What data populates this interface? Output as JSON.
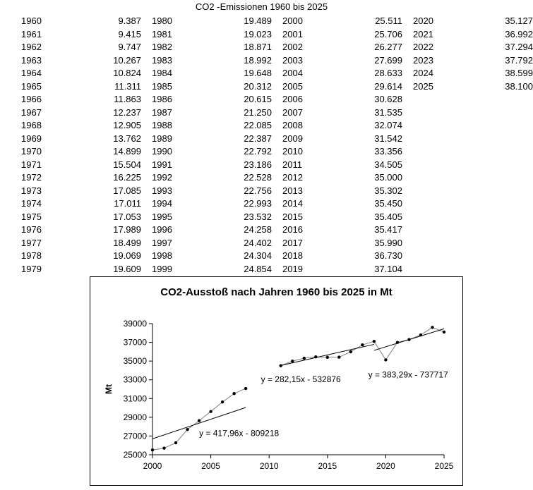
{
  "table": {
    "title": "CO2 -Emissionen 1960 bis 2025",
    "columns": [
      [
        [
          "1960",
          "9.387"
        ],
        [
          "1961",
          "9.415"
        ],
        [
          "1962",
          "9.747"
        ],
        [
          "1963",
          "10.267"
        ],
        [
          "1964",
          "10.824"
        ],
        [
          "1965",
          "11.311"
        ],
        [
          "1966",
          "11.863"
        ],
        [
          "1967",
          "12.237"
        ],
        [
          "1968",
          "12.905"
        ],
        [
          "1969",
          "13.762"
        ],
        [
          "1970",
          "14.899"
        ],
        [
          "1971",
          "15.504"
        ],
        [
          "1972",
          "16.225"
        ],
        [
          "1973",
          "17.085"
        ],
        [
          "1974",
          "17.011"
        ],
        [
          "1975",
          "17.053"
        ],
        [
          "1976",
          "17.989"
        ],
        [
          "1977",
          "18.499"
        ],
        [
          "1978",
          "19.069"
        ],
        [
          "1979",
          "19.609"
        ]
      ],
      [
        [
          "1980",
          "19.489"
        ],
        [
          "1981",
          "19.023"
        ],
        [
          "1982",
          "18.871"
        ],
        [
          "1983",
          "18.992"
        ],
        [
          "1984",
          "19.648"
        ],
        [
          "1985",
          "20.312"
        ],
        [
          "1986",
          "20.615"
        ],
        [
          "1987",
          "21.250"
        ],
        [
          "1988",
          "22.085"
        ],
        [
          "1989",
          "22.387"
        ],
        [
          "1990",
          "22.792"
        ],
        [
          "1991",
          "23.186"
        ],
        [
          "1992",
          "22.528"
        ],
        [
          "1993",
          "22.756"
        ],
        [
          "1994",
          "22.993"
        ],
        [
          "1995",
          "23.532"
        ],
        [
          "1996",
          "24.258"
        ],
        [
          "1997",
          "24.402"
        ],
        [
          "1998",
          "24.304"
        ],
        [
          "1999",
          "24.854"
        ]
      ],
      [
        [
          "2000",
          "25.511"
        ],
        [
          "2001",
          "25.706"
        ],
        [
          "2002",
          "26.277"
        ],
        [
          "2003",
          "27.699"
        ],
        [
          "2004",
          "28.633"
        ],
        [
          "2005",
          "29.614"
        ],
        [
          "2006",
          "30.628"
        ],
        [
          "2007",
          "31.535"
        ],
        [
          "2008",
          "32.074"
        ],
        [
          "2009",
          "31.542"
        ],
        [
          "2010",
          "33.356"
        ],
        [
          "2011",
          "34.505"
        ],
        [
          "2012",
          "35.000"
        ],
        [
          "2013",
          "35.302"
        ],
        [
          "2014",
          "35.450"
        ],
        [
          "2015",
          "35.405"
        ],
        [
          "2016",
          "35.417"
        ],
        [
          "2017",
          "35.990"
        ],
        [
          "2018",
          "36.730"
        ],
        [
          "2019",
          "37.104"
        ]
      ],
      [
        [
          "2020",
          "35.127"
        ],
        [
          "2021",
          "36.992"
        ],
        [
          "2022",
          "37.294"
        ],
        [
          "2023",
          "37.792"
        ],
        [
          "2024",
          "38.599"
        ],
        [
          "2025",
          "38.100"
        ]
      ]
    ]
  },
  "chart_data": {
    "type": "scatter",
    "title": "CO2-Ausstoß nach Jahren 1960 bis 2025 in Mt",
    "xlabel": "",
    "ylabel": "Mt",
    "xlim": [
      2000,
      2025
    ],
    "ylim": [
      25000,
      39000
    ],
    "x_ticks": [
      "2000",
      "2005",
      "2010",
      "2015",
      "2020",
      "2025"
    ],
    "x_tick_values": [
      2000,
      2005,
      2010,
      2015,
      2020,
      2025
    ],
    "y_ticks": [
      "25000",
      "27000",
      "29000",
      "31000",
      "33000",
      "35000",
      "37000",
      "39000"
    ],
    "y_tick_values": [
      25000,
      27000,
      29000,
      31000,
      33000,
      35000,
      37000,
      39000
    ],
    "grid": false,
    "series": [
      {
        "x": [
          2000,
          2001,
          2002,
          2003,
          2004,
          2005,
          2006,
          2007,
          2008
        ],
        "y": [
          25511,
          25706,
          26277,
          27699,
          28633,
          29614,
          30628,
          31535,
          32074
        ]
      },
      {
        "x": [
          2011,
          2012,
          2013,
          2014,
          2015,
          2016,
          2017,
          2018,
          2019,
          2020,
          2021,
          2022,
          2023,
          2024,
          2025
        ],
        "y": [
          34505,
          35000,
          35302,
          35450,
          35405,
          35417,
          35990,
          36730,
          37104,
          35127,
          36992,
          37294,
          37792,
          38599,
          38100
        ]
      }
    ],
    "trendlines": [
      {
        "label": "y = 417,96x - 809218",
        "x_range": [
          2000,
          2008
        ],
        "slope": 417.96,
        "intercept": -809218,
        "label_x": 2004,
        "label_y": 27000
      },
      {
        "label": "y = 282,15x - 532876",
        "x_range": [
          2011,
          2019
        ],
        "slope": 282.15,
        "intercept": -532876,
        "label_x": 2009.3,
        "label_y": 32750
      },
      {
        "label": "y = 383,29x - 737717",
        "x_range": [
          2019,
          2025
        ],
        "slope": 383.29,
        "intercept": -737717,
        "label_x": 2018.5,
        "label_y": 33250
      }
    ]
  }
}
